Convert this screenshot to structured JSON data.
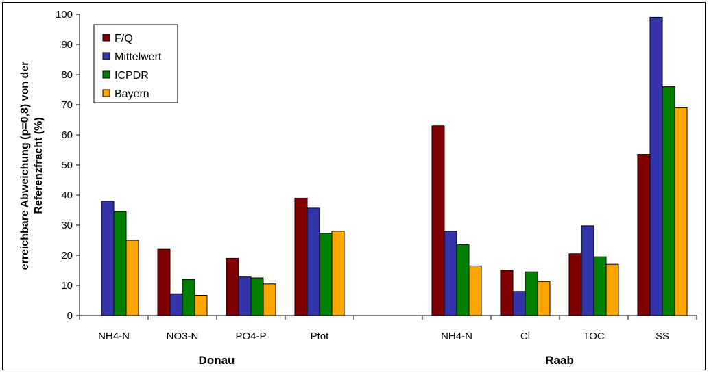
{
  "chart_data": {
    "type": "bar",
    "ylabel": "erreichbare Abweichung (p=0,8) von der Referenzfracht (%)",
    "ylabel_lines": [
      "erreichbare Abweichung (p=0,8) von der",
      "Referenzfracht (%)"
    ],
    "ylim": [
      0,
      100
    ],
    "yticks": [
      0,
      10,
      20,
      30,
      40,
      50,
      60,
      70,
      80,
      90,
      100
    ],
    "grid": false,
    "legend_position": "top-left",
    "categories": [
      "NH4-N",
      "NO3-N",
      "PO4-P",
      "Ptot",
      "",
      "NH4-N",
      "Cl",
      "TOC",
      "SS"
    ],
    "groups": [
      {
        "label": "Donau",
        "span": [
          0,
          3
        ]
      },
      {
        "label": "Raab",
        "span": [
          5,
          8
        ]
      }
    ],
    "series": [
      {
        "name": "F/Q",
        "color": "#800000",
        "values": [
          null,
          22,
          19,
          39,
          null,
          63,
          15,
          20.5,
          53.5
        ]
      },
      {
        "name": "Mittelwert",
        "color": "#3333aa",
        "values": [
          38,
          7.2,
          12.8,
          35.7,
          null,
          28,
          8,
          29.8,
          99
        ]
      },
      {
        "name": "ICPDR",
        "color": "#008000",
        "values": [
          34.5,
          12,
          12.5,
          27.3,
          null,
          23.5,
          14.5,
          19.5,
          76
        ]
      },
      {
        "name": "Bayern",
        "color": "#ffa500",
        "values": [
          25,
          6.7,
          10.5,
          28,
          null,
          16.5,
          11.3,
          17,
          69
        ]
      }
    ]
  }
}
